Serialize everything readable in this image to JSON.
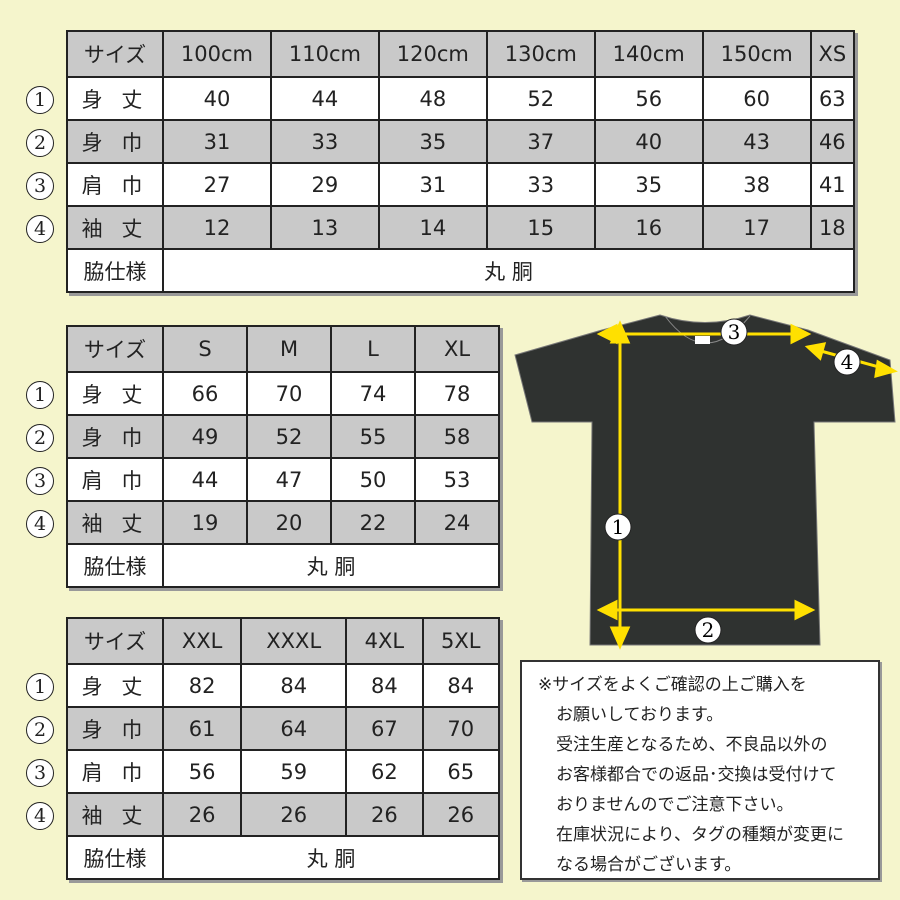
{
  "colors": {
    "background": "#f5f5cc",
    "shaded_row": "#c9c9c9",
    "arrow": "#ffe000",
    "shirt": "#2f3230"
  },
  "row_markers": [
    "①",
    "②",
    "③",
    "④"
  ],
  "tables": [
    {
      "header": [
        "サイズ",
        "100cm",
        "110cm",
        "120cm",
        "130cm",
        "140cm",
        "150cm",
        "XS"
      ],
      "rows": [
        {
          "label": "身 丈",
          "values": [
            "40",
            "44",
            "48",
            "52",
            "56",
            "60",
            "63"
          ]
        },
        {
          "label": "身 巾",
          "values": [
            "31",
            "33",
            "35",
            "37",
            "40",
            "43",
            "46"
          ]
        },
        {
          "label": "肩 巾",
          "values": [
            "27",
            "29",
            "31",
            "33",
            "35",
            "38",
            "41"
          ]
        },
        {
          "label": "袖 丈",
          "values": [
            "12",
            "13",
            "14",
            "15",
            "16",
            "17",
            "18"
          ]
        }
      ],
      "footer": {
        "label": "脇仕様",
        "value": "丸 胴"
      }
    },
    {
      "header": [
        "サイズ",
        "S",
        "M",
        "L",
        "XL"
      ],
      "rows": [
        {
          "label": "身 丈",
          "values": [
            "66",
            "70",
            "74",
            "78"
          ]
        },
        {
          "label": "身 巾",
          "values": [
            "49",
            "52",
            "55",
            "58"
          ]
        },
        {
          "label": "肩 巾",
          "values": [
            "44",
            "47",
            "50",
            "53"
          ]
        },
        {
          "label": "袖 丈",
          "values": [
            "19",
            "20",
            "22",
            "24"
          ]
        }
      ],
      "footer": {
        "label": "脇仕様",
        "value": "丸 胴"
      }
    },
    {
      "header": [
        "サイズ",
        "XXL",
        "XXXL",
        "4XL",
        "5XL"
      ],
      "rows": [
        {
          "label": "身 丈",
          "values": [
            "82",
            "84",
            "84",
            "84"
          ]
        },
        {
          "label": "身 巾",
          "values": [
            "61",
            "64",
            "67",
            "70"
          ]
        },
        {
          "label": "肩 巾",
          "values": [
            "56",
            "59",
            "62",
            "65"
          ]
        },
        {
          "label": "袖 丈",
          "values": [
            "26",
            "26",
            "26",
            "26"
          ]
        }
      ],
      "footer": {
        "label": "脇仕様",
        "value": "丸 胴"
      }
    }
  ],
  "diagram": {
    "markers": [
      "1",
      "2",
      "3",
      "4"
    ]
  },
  "note": {
    "lines": [
      "※サイズをよくご確認の上ご購入を",
      "お願いしております。",
      "受注生産となるため、不良品以外の",
      "お客様都合での返品･交換は受付けて",
      "おりませんのでご注意下さい。",
      "在庫状況により、タグの種類が変更に",
      "なる場合がございます。"
    ]
  }
}
